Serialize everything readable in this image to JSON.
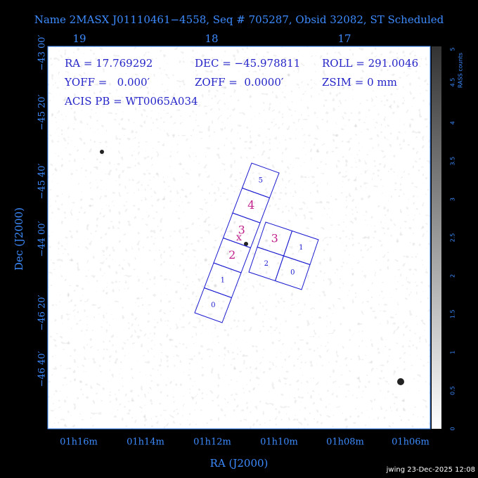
{
  "title": "Name 2MASX J01110461−4558, Seq # 705287, Obsid 32082, ST Scheduled",
  "axes": {
    "top_labels": [
      "19",
      "18",
      "17"
    ],
    "left_labels": [
      "−43 00′",
      "−45 20′",
      "−45 40′",
      "−44 00′",
      "−46 20′",
      "−46 40′"
    ],
    "bottom_labels": [
      "01h16m",
      "01h14m",
      "01h12m",
      "01h10m",
      "01h08m",
      "01h06m"
    ],
    "x_title": "RA (J2000)",
    "y_title": "Dec (J2000)"
  },
  "info": {
    "ra": "RA = 17.769292",
    "dec": "DEC = −45.978811",
    "roll": "ROLL = 291.0046",
    "yoff": "YOFF =   0.000′",
    "zoff": "ZOFF =  0.0000′",
    "zsim": "ZSIM = 0 mm",
    "acis_pb": "ACIS PB = WT0065A034"
  },
  "colorbar": {
    "label": "RASS counts",
    "ticks": [
      "0",
      "0.5",
      "1",
      "1.5",
      "2",
      "2.5",
      "3",
      "3.5",
      "4",
      "4.5",
      "5"
    ]
  },
  "chips": {
    "strip": [
      "0",
      "1",
      "2",
      "3",
      "4",
      "5"
    ],
    "group": [
      "3",
      "1",
      "2",
      "0"
    ]
  },
  "marker": "x",
  "footer": "jwing 23-Dec-2025 12:08"
}
